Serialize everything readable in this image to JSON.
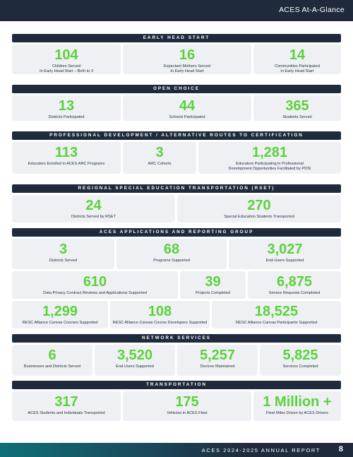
{
  "header": {
    "title": "ACES At-A-Glance"
  },
  "footer": {
    "report": "ACES 2024-2025 ANNUAL REPORT",
    "page": "8"
  },
  "colors": {
    "navy": "#1f2b3d",
    "green": "#5bd23b",
    "card": "#eef0f3"
  },
  "sections": [
    {
      "title": "EARLY HEAD START",
      "rows": [
        [
          {
            "value": "104",
            "label": "Children Served\nIn Early Head Start – Birth to 3"
          },
          {
            "value": "16",
            "label": "Expectant Mothers Served\nIn Early Head Start"
          },
          {
            "value": "14",
            "label": "Communities Participated\nin Early Head Start"
          }
        ]
      ]
    },
    {
      "title": "OPEN CHOICE",
      "rows": [
        [
          {
            "value": "13",
            "label": "Districts Participated"
          },
          {
            "value": "44",
            "label": "Schools Participated"
          },
          {
            "value": "365",
            "label": "Students Served"
          }
        ]
      ]
    },
    {
      "title": "PROFESSIONAL DEVELOPMENT / ALTERNATIVE ROUTES TO CERTIFICATION",
      "rows": [
        [
          {
            "value": "113",
            "label": "Educators Enrolled in ACES ARC Programs"
          },
          {
            "value": "3",
            "label": "ARC Cohorts"
          },
          {
            "value": "1,281",
            "label": "Educators Participating in Professional\nDevelopment Opportunities Facilitated by PDSI"
          }
        ]
      ]
    },
    {
      "title": "REGIONAL SPECIAL EDUCATION TRANSPORTATION (RSET)",
      "rows": [
        [
          {
            "value": "24",
            "label": "Districts Served by RSET"
          },
          {
            "value": "270",
            "label": "Special Education Students Transported"
          }
        ]
      ]
    },
    {
      "title": "ACES APPLICATIONS AND REPORTING GROUP",
      "rows": [
        [
          {
            "value": "3",
            "label": "Districts Served"
          },
          {
            "value": "68",
            "label": "Programs Supported"
          },
          {
            "value": "3,027",
            "label": "End-Users Supported"
          }
        ],
        [
          {
            "value": "610",
            "label": "Data Privacy Contract Reviews and Applications Supported"
          },
          {
            "value": "39",
            "label": "Projects Completed"
          },
          {
            "value": "6,875",
            "label": "Service Requests Completed"
          }
        ],
        [
          {
            "value": "1,299",
            "label": "RESC Alliance Canvas Courses Supported"
          },
          {
            "value": "108",
            "label": "RESC Alliance Canvas Course Developers Supported"
          },
          {
            "value": "18,525",
            "label": "RESC Alliance Canvas Participants Supported"
          }
        ]
      ]
    },
    {
      "title": "NETWORK SERVICES",
      "rows": [
        [
          {
            "value": "6",
            "label": "Businesses and Districts Served"
          },
          {
            "value": "3,520",
            "label": "End-Users Supported"
          },
          {
            "value": "5,257",
            "label": "Devices Maintained"
          },
          {
            "value": "5,825",
            "label": "Services Completed"
          }
        ]
      ]
    },
    {
      "title": "TRANSPORTATION",
      "rows": [
        [
          {
            "value": "317",
            "label": "ACES Students and Individuals  Transported"
          },
          {
            "value": "175",
            "label": "Vehicles in ACES Fleet"
          },
          {
            "value": "1 Million +",
            "label": "Fleet Miles Driven by ACES Drivers"
          }
        ]
      ]
    }
  ]
}
